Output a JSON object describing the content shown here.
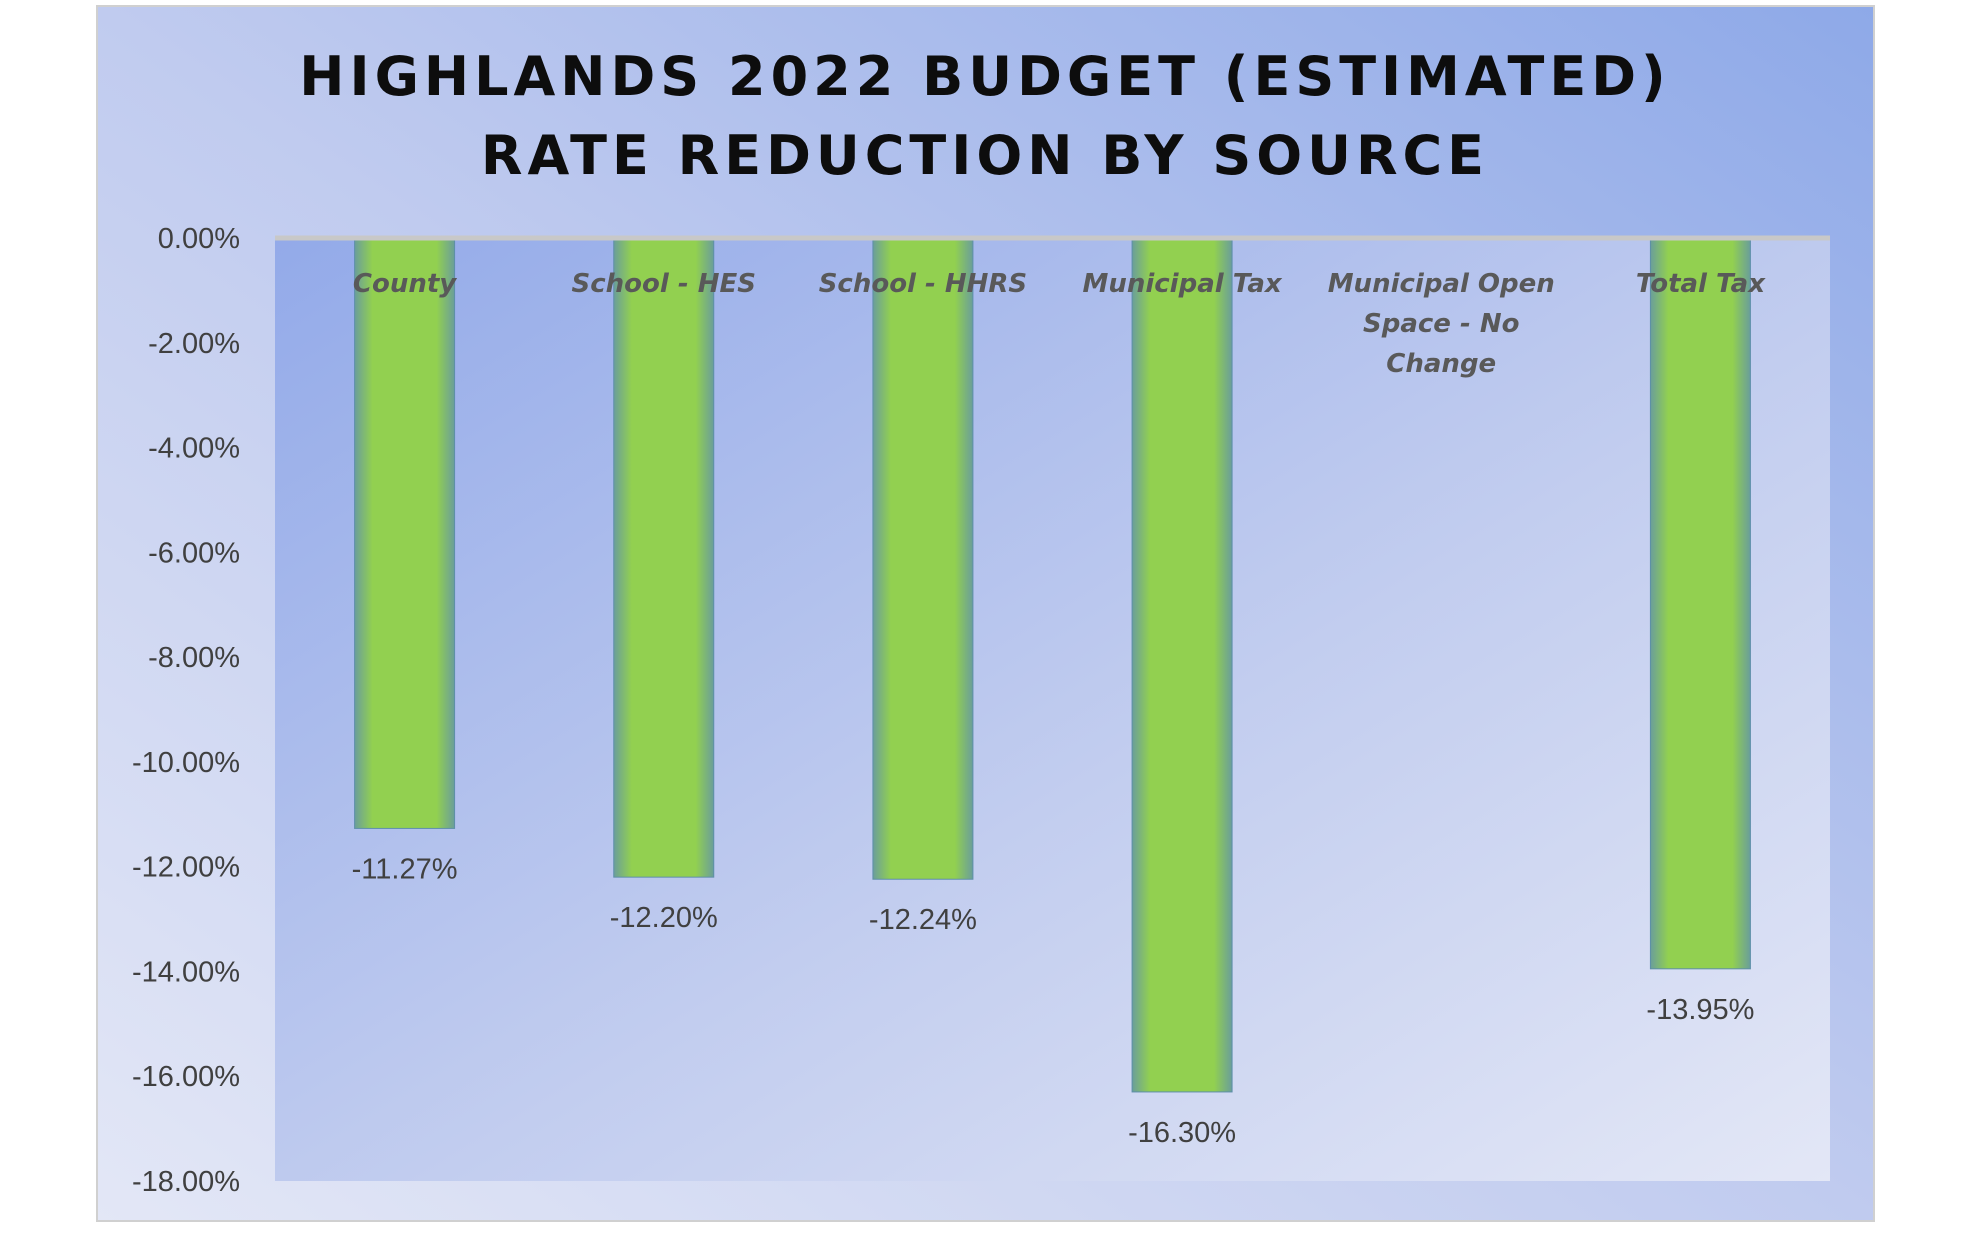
{
  "chart_data": {
    "type": "bar",
    "title": [
      "HIGHLANDS 2022 BUDGET (ESTIMATED)",
      "RATE REDUCTION BY SOURCE"
    ],
    "categories": [
      "County",
      "School - HES",
      "School - HHRS",
      "Municipal Tax",
      "Municipal Open Space - No Change",
      "Total Tax"
    ],
    "category_lines": [
      [
        "County"
      ],
      [
        "School - HES"
      ],
      [
        "School - HHRS"
      ],
      [
        "Municipal Tax"
      ],
      [
        "Municipal Open",
        "Space - No",
        "Change"
      ],
      [
        "Total Tax"
      ]
    ],
    "values": [
      -11.27,
      -12.2,
      -12.24,
      -16.3,
      0,
      -13.95
    ],
    "data_labels": [
      "-11.27%",
      "-12.20%",
      "-12.24%",
      "-16.30%",
      "",
      "-13.95%"
    ],
    "ylim": [
      -18,
      0
    ],
    "yticks": [
      "0.00%",
      "-2.00%",
      "-4.00%",
      "-6.00%",
      "-8.00%",
      "-10.00%",
      "-12.00%",
      "-14.00%",
      "-16.00%",
      "-18.00%"
    ],
    "xlabel": "",
    "ylabel": "",
    "grid": false,
    "colors": {
      "bar": "#92d050",
      "bar_edge": "#5b9bd5",
      "bg_dark": "#8faae8",
      "bg_light": "#dfe4f5"
    }
  }
}
